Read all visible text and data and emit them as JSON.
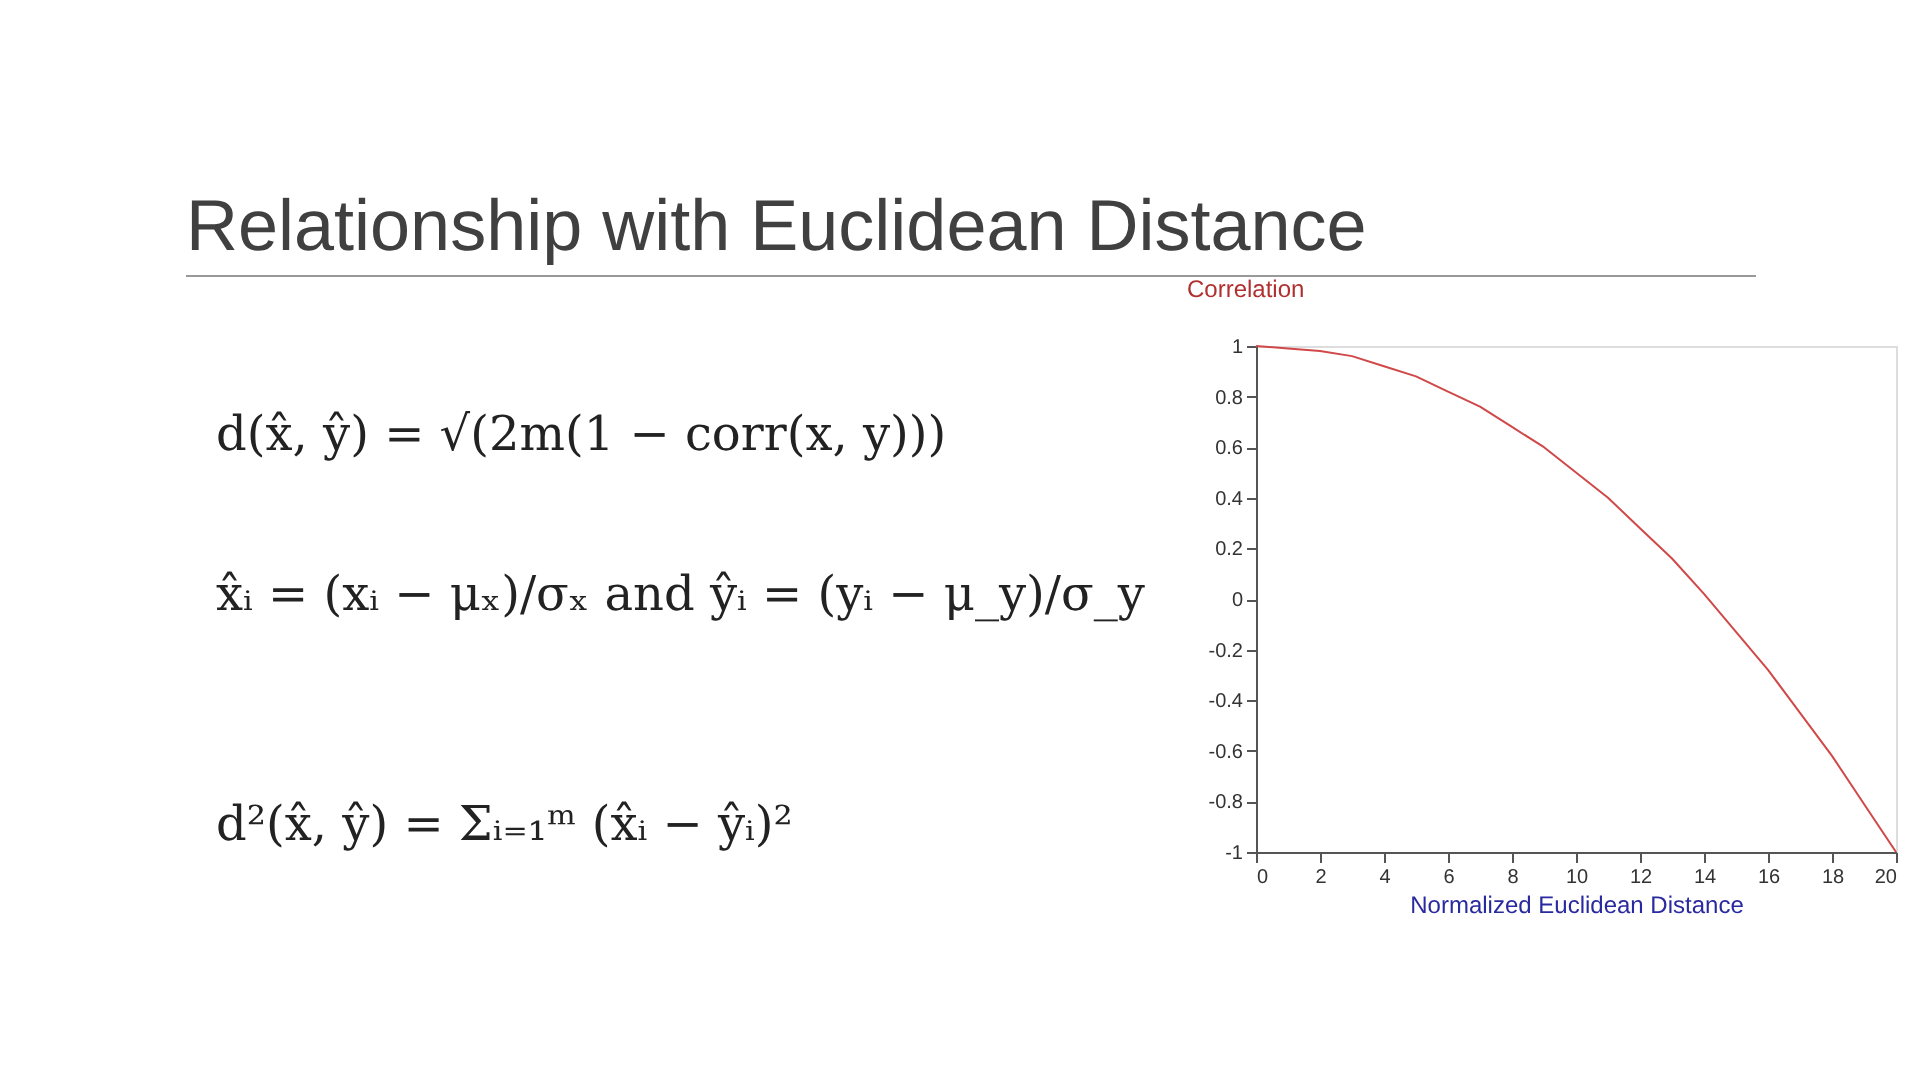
{
  "chart_data": {
    "type": "line",
    "title": "Relationship with Euclidean Distance",
    "xlabel": "Normalized Euclidean Distance",
    "ylabel": "Correlation",
    "annotations": [
      "d(x̂, ŷ) = √(2m(1 − corr(x, y)))",
      "x̂ᵢ = (xᵢ − μₓ)/σₓ  and  ŷᵢ = (yᵢ − μ_y)/σ_y",
      "d²(x̂, ŷ) = Σᵢ₌₁ᵐ (x̂ᵢ − ŷᵢ)²"
    ],
    "x": [
      0,
      1,
      2,
      3,
      4,
      5,
      6,
      7,
      8,
      9,
      10,
      11,
      12,
      13,
      14,
      15,
      16,
      17,
      18,
      19,
      20
    ],
    "series": [
      {
        "color": "#d04848",
        "values": [
          1,
          0.99,
          0.98,
          0.96,
          0.92,
          0.88,
          0.82,
          0.76,
          0.68,
          0.6,
          0.5,
          0.4,
          0.28,
          0.16,
          0.02,
          -0.13,
          -0.28,
          -0.45,
          -0.62,
          -0.81,
          -1
        ]
      }
    ],
    "xlim": [
      0,
      20
    ],
    "xticks": [
      0,
      2,
      4,
      6,
      8,
      10,
      12,
      14,
      16,
      18,
      20
    ],
    "ylim": [
      -1,
      1
    ],
    "yticks": [
      -1,
      -0.8,
      -0.6,
      -0.4,
      -0.2,
      0,
      0.2,
      0.4,
      0.6,
      0.8,
      1
    ],
    "grid": false,
    "legend": false,
    "line_style": "solid",
    "marker": "none"
  }
}
